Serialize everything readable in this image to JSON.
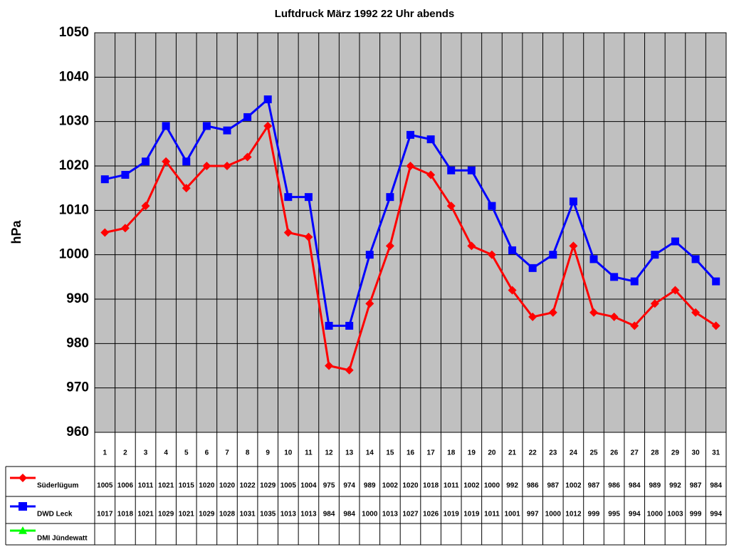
{
  "chart_data": {
    "type": "line",
    "title": "Luftdruck März 1992 22 Uhr abends",
    "y_label": "hPa",
    "categories": [
      "1",
      "2",
      "3",
      "4",
      "5",
      "6",
      "7",
      "8",
      "9",
      "10",
      "11",
      "12",
      "13",
      "14",
      "15",
      "16",
      "17",
      "18",
      "19",
      "20",
      "21",
      "22",
      "23",
      "24",
      "25",
      "26",
      "27",
      "28",
      "29",
      "30",
      "31"
    ],
    "series": [
      {
        "name": "Süderlügum",
        "color": "#ff0000",
        "marker": "diamond",
        "values": [
          1005,
          1006,
          1011,
          1021,
          1015,
          1020,
          1020,
          1022,
          1029,
          1005,
          1004,
          975,
          974,
          989,
          1002,
          1020,
          1018,
          1011,
          1002,
          1000,
          992,
          986,
          987,
          1002,
          987,
          986,
          984,
          989,
          992,
          987,
          984
        ]
      },
      {
        "name": "DWD Leck",
        "color": "#0000ff",
        "marker": "square",
        "values": [
          1017,
          1018,
          1021,
          1029,
          1021,
          1029,
          1028,
          1031,
          1035,
          1013,
          1013,
          984,
          984,
          1000,
          1013,
          1027,
          1026,
          1019,
          1019,
          1011,
          1001,
          997,
          1000,
          1012,
          999,
          995,
          994,
          1000,
          1003,
          999,
          994
        ]
      },
      {
        "name": "DMI Jündewatt",
        "color": "#00ff00",
        "marker": "triangle",
        "values": [
          null,
          null,
          null,
          null,
          null,
          null,
          null,
          null,
          null,
          null,
          null,
          null,
          null,
          null,
          null,
          null,
          null,
          null,
          null,
          null,
          null,
          null,
          null,
          null,
          null,
          null,
          null,
          null,
          null,
          null,
          null
        ]
      }
    ],
    "ylim": [
      960,
      1050
    ],
    "yticks": [
      960,
      970,
      980,
      990,
      1000,
      1010,
      1020,
      1030,
      1040,
      1050
    ],
    "grid": true,
    "data_table": true
  }
}
